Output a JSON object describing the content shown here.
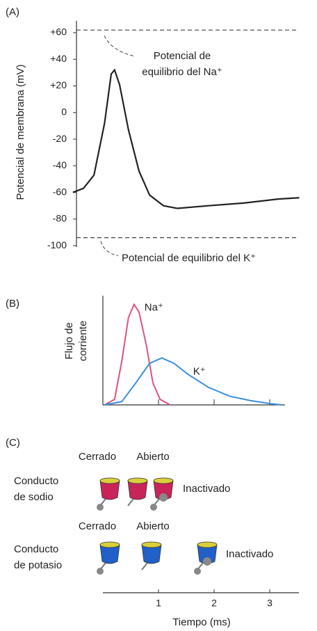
{
  "chart_data": [
    {
      "type": "line",
      "panel": "(A)",
      "ylabel": "Potencial de membrana (mV)",
      "x": [
        -0.54,
        -0.35,
        -0.16,
        0.03,
        0.15,
        0.21,
        0.3,
        0.46,
        0.65,
        0.84,
        1.09,
        1.34,
        1.9,
        2.53,
        3.15,
        3.53
      ],
      "series": [
        {
          "color": "#222222",
          "values": [
            -60,
            -57,
            -47,
            -8,
            29,
            32,
            21,
            -13,
            -44,
            -62,
            -70,
            -72,
            -70,
            -68,
            -65,
            -64
          ]
        }
      ],
      "xlim": [
        -0.55,
        3.6
      ],
      "ylim": [
        -101,
        69
      ],
      "yticks": [
        {
          "value": 60,
          "label": "+60"
        },
        {
          "value": 40,
          "label": "+40"
        },
        {
          "value": 20,
          "label": "+20"
        },
        0,
        -20,
        -40,
        -60,
        -80,
        -100
      ],
      "reference_lines": [
        {
          "value": 62,
          "label": [
            "Potencial de",
            "equilibrio del Na⁺"
          ]
        },
        {
          "value": -94,
          "label": [
            "Potencial de equilibrio del K⁺"
          ]
        }
      ]
    },
    {
      "type": "line",
      "panel": "(B)",
      "ylabel": [
        "Flujo de",
        "corriente"
      ],
      "xlim": [
        -0.55,
        3.6
      ],
      "ylim": [
        0,
        1
      ],
      "series": [
        {
          "name": "Na⁺",
          "color": "#e0527a",
          "x": [
            0.03,
            0.21,
            0.34,
            0.46,
            0.56,
            0.65,
            0.78,
            0.9,
            1.03,
            1.21
          ],
          "values": [
            0,
            0.05,
            0.4,
            0.8,
            0.92,
            0.85,
            0.55,
            0.2,
            0.05,
            0
          ]
        },
        {
          "name": "K⁺",
          "color": "#3a8ee0",
          "x": [
            0.03,
            0.34,
            0.59,
            0.84,
            1.06,
            1.28,
            1.53,
            1.9,
            2.28,
            2.65,
            3.03,
            3.21
          ],
          "values": [
            0,
            0.03,
            0.2,
            0.38,
            0.43,
            0.38,
            0.28,
            0.16,
            0.08,
            0.04,
            0.01,
            0
          ]
        }
      ]
    }
  ],
  "panel_c": {
    "panel": "(C)",
    "sodium": {
      "name": [
        "Conducto",
        "de sodio"
      ],
      "states": [
        "Cerrado",
        "Abierto",
        "Inactivado"
      ]
    },
    "potassium": {
      "name": [
        "Conducto",
        "de potasio"
      ],
      "states": [
        "Cerrado",
        "Abierto",
        "Inactivado"
      ]
    },
    "time_axis": {
      "label": "Tiempo (ms)",
      "xticks": [
        1,
        2,
        3
      ]
    }
  }
}
